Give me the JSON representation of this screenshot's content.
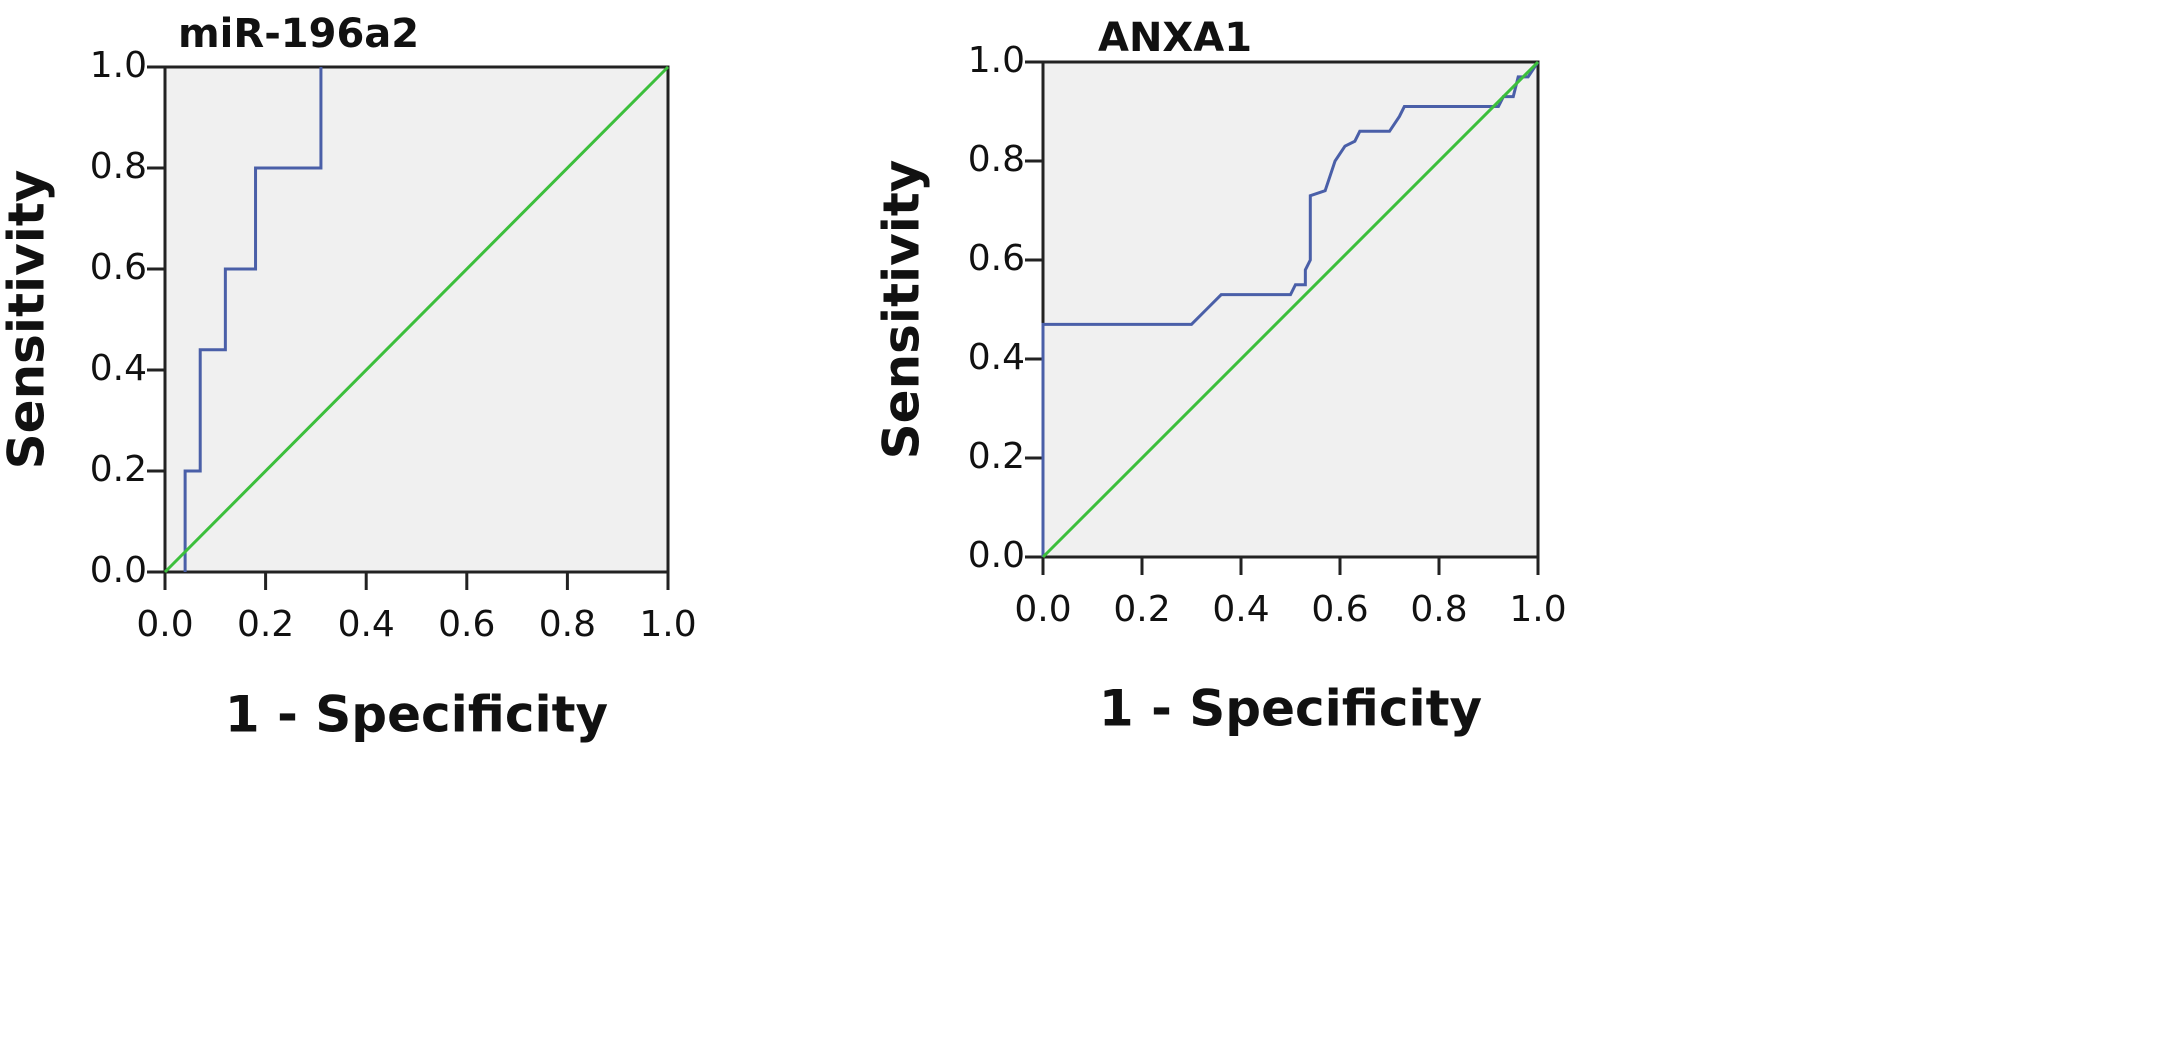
{
  "chart_data": [
    {
      "type": "line",
      "title": "miR-196a2",
      "xlabel": "1 - Specificity",
      "ylabel": "Sensitivity",
      "xlim": [
        0,
        1
      ],
      "ylim": [
        0,
        1
      ],
      "xticks": [
        {
          "value": 0,
          "label": "0.0"
        },
        0.2,
        0.4,
        0.6,
        0.8,
        {
          "value": 1,
          "label": "1.0"
        }
      ],
      "yticks": [
        {
          "value": 0,
          "label": "0.0"
        },
        0.2,
        0.4,
        0.6,
        0.8,
        {
          "value": 1,
          "label": "1.0"
        }
      ],
      "series": [
        {
          "color": "#4a5fa8",
          "x": [
            0.04,
            0.04,
            0.07,
            0.07,
            0.12,
            0.12,
            0.18,
            0.18,
            0.31,
            0.31
          ],
          "values": [
            0,
            0.2,
            0.2,
            0.44,
            0.44,
            0.6,
            0.6,
            0.8,
            0.8,
            1.0
          ]
        },
        {
          "color": "#3cbf3c",
          "x": [
            0,
            1
          ],
          "values": [
            0,
            1
          ]
        }
      ]
    },
    {
      "type": "line",
      "title": "ANXA1",
      "xlabel": "1 - Specificity",
      "ylabel": "Sensitivity",
      "xlim": [
        0,
        1
      ],
      "ylim": [
        0,
        1
      ],
      "xticks": [
        {
          "value": 0,
          "label": "0.0"
        },
        0.2,
        0.4,
        0.6,
        0.8,
        {
          "value": 1,
          "label": "1.0"
        }
      ],
      "yticks": [
        {
          "value": 0,
          "label": "0.0"
        },
        0.2,
        0.4,
        0.6,
        0.8,
        {
          "value": 1,
          "label": "1.0"
        }
      ],
      "series": [
        {
          "color": "#4a5fa8",
          "x": [
            0,
            0,
            0.3,
            0.33,
            0.36,
            0.5,
            0.51,
            0.53,
            0.53,
            0.54,
            0.54,
            0.57,
            0.59,
            0.61,
            0.63,
            0.64,
            0.7,
            0.72,
            0.73,
            0.92,
            0.93,
            0.95,
            0.96,
            0.98,
            1
          ],
          "values": [
            0,
            0.47,
            0.47,
            0.5,
            0.53,
            0.53,
            0.55,
            0.55,
            0.58,
            0.6,
            0.73,
            0.74,
            0.8,
            0.83,
            0.84,
            0.86,
            0.86,
            0.89,
            0.91,
            0.91,
            0.93,
            0.93,
            0.97,
            0.97,
            1
          ]
        },
        {
          "color": "#3cbf3c",
          "x": [
            0,
            1
          ],
          "values": [
            0,
            1
          ]
        }
      ]
    }
  ]
}
